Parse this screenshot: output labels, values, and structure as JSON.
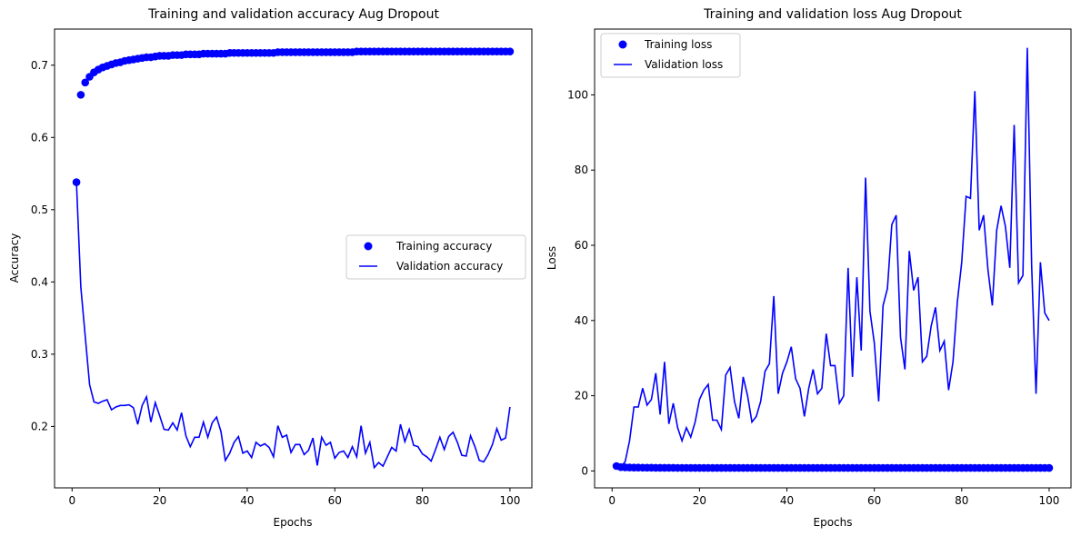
{
  "colors": {
    "series": "#0000ff",
    "axes": "#000000",
    "legend_edge": "#cccccc",
    "background": "#ffffff"
  },
  "chart_data": [
    {
      "type": "line",
      "title": "Training and validation accuracy Aug Dropout",
      "xlabel": "Epochs",
      "ylabel": "Accuracy",
      "xlim": [
        -4,
        105
      ],
      "ylim": [
        0.115,
        0.75
      ],
      "xticks": [
        0,
        20,
        40,
        60,
        80,
        100
      ],
      "yticks": [
        0.2,
        0.3,
        0.4,
        0.5,
        0.6,
        0.7
      ],
      "ytick_labels": [
        "0.2",
        "0.3",
        "0.4",
        "0.5",
        "0.6",
        "0.7"
      ],
      "grid": false,
      "legend": "center-right",
      "x": [
        1,
        2,
        3,
        4,
        5,
        6,
        7,
        8,
        9,
        10,
        11,
        12,
        13,
        14,
        15,
        16,
        17,
        18,
        19,
        20,
        21,
        22,
        23,
        24,
        25,
        26,
        27,
        28,
        29,
        30,
        31,
        32,
        33,
        34,
        35,
        36,
        37,
        38,
        39,
        40,
        41,
        42,
        43,
        44,
        45,
        46,
        47,
        48,
        49,
        50,
        51,
        52,
        53,
        54,
        55,
        56,
        57,
        58,
        59,
        60,
        61,
        62,
        63,
        64,
        65,
        66,
        67,
        68,
        69,
        70,
        71,
        72,
        73,
        74,
        75,
        76,
        77,
        78,
        79,
        80,
        81,
        82,
        83,
        84,
        85,
        86,
        87,
        88,
        89,
        90,
        91,
        92,
        93,
        94,
        95,
        96,
        97,
        98,
        99,
        100
      ],
      "series": [
        {
          "name": "Training accuracy",
          "style": "markers",
          "values": [
            0.538,
            0.659,
            0.676,
            0.684,
            0.69,
            0.694,
            0.697,
            0.699,
            0.701,
            0.703,
            0.704,
            0.706,
            0.707,
            0.708,
            0.709,
            0.71,
            0.711,
            0.711,
            0.712,
            0.713,
            0.713,
            0.713,
            0.714,
            0.714,
            0.714,
            0.715,
            0.715,
            0.715,
            0.715,
            0.716,
            0.716,
            0.716,
            0.716,
            0.716,
            0.716,
            0.717,
            0.717,
            0.717,
            0.717,
            0.717,
            0.717,
            0.717,
            0.717,
            0.717,
            0.717,
            0.717,
            0.718,
            0.718,
            0.718,
            0.718,
            0.718,
            0.718,
            0.718,
            0.718,
            0.718,
            0.718,
            0.718,
            0.718,
            0.718,
            0.718,
            0.718,
            0.718,
            0.718,
            0.718,
            0.719,
            0.719,
            0.719,
            0.719,
            0.719,
            0.719,
            0.719,
            0.719,
            0.719,
            0.719,
            0.719,
            0.719,
            0.719,
            0.719,
            0.719,
            0.719,
            0.719,
            0.719,
            0.719,
            0.719,
            0.719,
            0.719,
            0.719,
            0.719,
            0.719,
            0.719,
            0.719,
            0.719,
            0.719,
            0.719,
            0.719,
            0.719,
            0.719,
            0.719,
            0.719,
            0.719
          ]
        },
        {
          "name": "Validation accuracy",
          "style": "line",
          "values": [
            0.538,
            0.393,
            0.325,
            0.258,
            0.234,
            0.232,
            0.235,
            0.237,
            0.223,
            0.227,
            0.229,
            0.229,
            0.23,
            0.226,
            0.203,
            0.229,
            0.241,
            0.206,
            0.233,
            0.215,
            0.196,
            0.195,
            0.205,
            0.195,
            0.219,
            0.187,
            0.172,
            0.185,
            0.185,
            0.206,
            0.185,
            0.205,
            0.213,
            0.193,
            0.153,
            0.163,
            0.178,
            0.186,
            0.163,
            0.166,
            0.157,
            0.178,
            0.173,
            0.176,
            0.171,
            0.158,
            0.201,
            0.185,
            0.188,
            0.164,
            0.175,
            0.175,
            0.161,
            0.167,
            0.184,
            0.146,
            0.185,
            0.174,
            0.178,
            0.156,
            0.164,
            0.166,
            0.157,
            0.172,
            0.158,
            0.201,
            0.163,
            0.178,
            0.143,
            0.15,
            0.145,
            0.158,
            0.171,
            0.166,
            0.203,
            0.179,
            0.196,
            0.174,
            0.172,
            0.162,
            0.158,
            0.152,
            0.168,
            0.185,
            0.168,
            0.186,
            0.192,
            0.178,
            0.16,
            0.159,
            0.187,
            0.172,
            0.153,
            0.151,
            0.161,
            0.175,
            0.197,
            0.181,
            0.184,
            0.227
          ]
        }
      ]
    },
    {
      "type": "line",
      "title": "Training and validation loss Aug Dropout",
      "xlabel": "Epochs",
      "ylabel": "Loss",
      "xlim": [
        -4,
        105
      ],
      "ylim": [
        -4.5,
        117.5
      ],
      "xticks": [
        0,
        20,
        40,
        60,
        80,
        100
      ],
      "yticks": [
        0,
        20,
        40,
        60,
        80,
        100
      ],
      "ytick_labels": [
        "0",
        "20",
        "40",
        "60",
        "80",
        "100"
      ],
      "grid": false,
      "legend": "upper-left",
      "x": [
        1,
        2,
        3,
        4,
        5,
        6,
        7,
        8,
        9,
        10,
        11,
        12,
        13,
        14,
        15,
        16,
        17,
        18,
        19,
        20,
        21,
        22,
        23,
        24,
        25,
        26,
        27,
        28,
        29,
        30,
        31,
        32,
        33,
        34,
        35,
        36,
        37,
        38,
        39,
        40,
        41,
        42,
        43,
        44,
        45,
        46,
        47,
        48,
        49,
        50,
        51,
        52,
        53,
        54,
        55,
        56,
        57,
        58,
        59,
        60,
        61,
        62,
        63,
        64,
        65,
        66,
        67,
        68,
        69,
        70,
        71,
        72,
        73,
        74,
        75,
        76,
        77,
        78,
        79,
        80,
        81,
        82,
        83,
        84,
        85,
        86,
        87,
        88,
        89,
        90,
        91,
        92,
        93,
        94,
        95,
        96,
        97,
        98,
        99,
        100
      ],
      "series": [
        {
          "name": "Training loss",
          "style": "markers",
          "values": [
            1.3,
            1.0,
            0.95,
            0.92,
            0.9,
            0.88,
            0.87,
            0.86,
            0.85,
            0.84,
            0.83,
            0.83,
            0.82,
            0.82,
            0.81,
            0.81,
            0.81,
            0.8,
            0.8,
            0.8,
            0.8,
            0.8,
            0.8,
            0.79,
            0.79,
            0.79,
            0.79,
            0.79,
            0.79,
            0.79,
            0.79,
            0.79,
            0.79,
            0.79,
            0.79,
            0.79,
            0.79,
            0.79,
            0.79,
            0.79,
            0.79,
            0.79,
            0.79,
            0.79,
            0.79,
            0.79,
            0.79,
            0.79,
            0.79,
            0.79,
            0.79,
            0.79,
            0.79,
            0.79,
            0.79,
            0.79,
            0.79,
            0.79,
            0.79,
            0.79,
            0.79,
            0.79,
            0.79,
            0.79,
            0.79,
            0.79,
            0.79,
            0.79,
            0.79,
            0.79,
            0.79,
            0.79,
            0.79,
            0.79,
            0.79,
            0.79,
            0.79,
            0.79,
            0.79,
            0.79,
            0.79,
            0.79,
            0.79,
            0.79,
            0.79,
            0.79,
            0.79,
            0.79,
            0.79,
            0.79,
            0.79,
            0.79,
            0.79,
            0.79,
            0.79,
            0.79,
            0.79,
            0.79,
            0.79,
            0.79
          ]
        },
        {
          "name": "Validation loss",
          "style": "line",
          "values": [
            1.3,
            1.0,
            2.5,
            8.0,
            17.0,
            17.0,
            22.0,
            17.5,
            19.0,
            26.0,
            15.0,
            29.0,
            12.5,
            18.0,
            11.5,
            8.0,
            11.5,
            9.0,
            13.0,
            19.0,
            21.5,
            23.0,
            13.5,
            13.5,
            11.0,
            25.5,
            27.5,
            18.5,
            14.0,
            25.0,
            20.0,
            13.0,
            14.5,
            18.5,
            26.5,
            28.5,
            46.5,
            20.5,
            26.0,
            29.0,
            33.0,
            24.5,
            22.0,
            14.5,
            22.0,
            27.0,
            20.5,
            22.0,
            36.5,
            28.0,
            28.0,
            18.0,
            20.0,
            54.0,
            25.0,
            51.5,
            32.0,
            78.0,
            42.5,
            34.0,
            18.5,
            44.0,
            48.5,
            65.5,
            68.0,
            35.5,
            27.0,
            58.5,
            48.0,
            51.5,
            29.0,
            30.5,
            38.5,
            43.5,
            32.0,
            34.5,
            21.5,
            29.0,
            45.0,
            55.5,
            73.0,
            72.5,
            101.0,
            64.0,
            68.0,
            53.5,
            44.0,
            64.0,
            70.5,
            65.0,
            54.0,
            92.0,
            50.0,
            52.0,
            112.5,
            54.5,
            20.5,
            55.5,
            42.0,
            40.0
          ]
        }
      ]
    }
  ]
}
